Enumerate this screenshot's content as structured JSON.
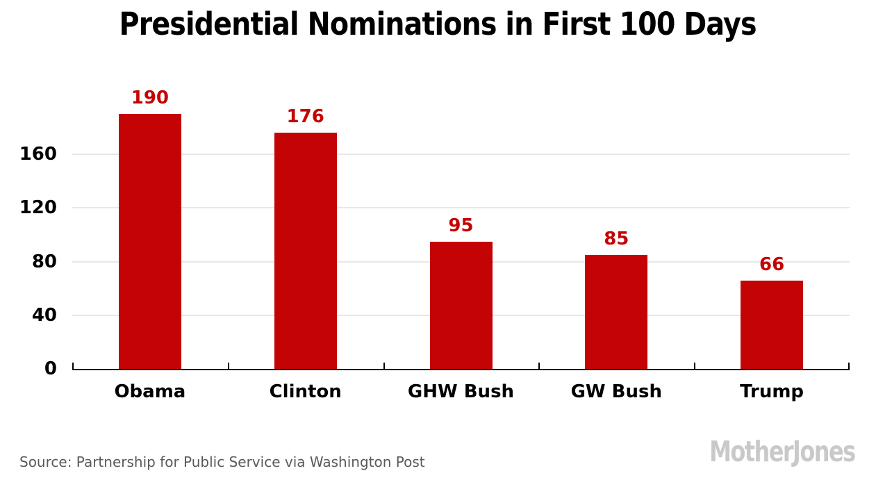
{
  "chart_data": {
    "type": "bar",
    "title": "Presidential Nominations in First 100 Days",
    "categories": [
      "Obama",
      "Clinton",
      "GHW Bush",
      "GW Bush",
      "Trump"
    ],
    "values": [
      190,
      176,
      95,
      85,
      66
    ],
    "yticks": [
      0,
      40,
      80,
      120,
      160
    ],
    "ylim": [
      0,
      200
    ],
    "bar_color": "#c40404",
    "value_label_color": "#c40404",
    "grid": true,
    "gridline_color": "#e7e7e7",
    "legend": "none",
    "xlabel": "",
    "ylabel": ""
  },
  "footer": {
    "source": "Source: Partnership for Public Service via Washington Post",
    "logo_text": "MotherJones"
  }
}
